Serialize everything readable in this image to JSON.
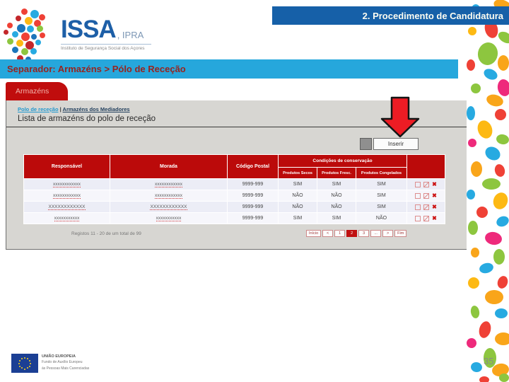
{
  "banner": {
    "title": "2. Procedimento de Candidatura"
  },
  "logo": {
    "name": "ISSA",
    "suffix": ", IPRA",
    "subtitle": "Instituto de Segurança Social dos Açores"
  },
  "separator": {
    "label": "Separador: Armazéns > Pólo de Receção"
  },
  "tab": {
    "label": "Armazéns"
  },
  "app": {
    "breadcrumb": {
      "link_polo": "Polo de receção",
      "divider": "|",
      "link_armazens": "Armazéns dos Mediadores"
    },
    "title": "Lista de armazéns do polo de receção",
    "insert_button": "Inserir",
    "table": {
      "col_responsavel": "Responsável",
      "col_morada": "Morada",
      "col_codigo_postal": "Código Postal",
      "col_condicoes": "Condições de conservação",
      "sub_secos": "Produtos Secos",
      "sub_frescos": "Produtos Fresc.",
      "sub_congelados": "Produtos Congelados",
      "rows": [
        {
          "responsavel": "xxxxxxxxxxxx",
          "morada": "xxxxxxxxxxxx",
          "codigo_postal": "9999-999",
          "secos": "SIM",
          "frescos": "SIM",
          "congelados": "SIM"
        },
        {
          "responsavel": "xxxxxxxxxxxx",
          "morada": "xxxxxxxxxxxx",
          "codigo_postal": "9999-999",
          "secos": "NÃO",
          "frescos": "NÃO",
          "congelados": "SIM"
        },
        {
          "responsavel": "XXXXXXXXXXXX",
          "morada": "XXXXXXXXXXXX",
          "codigo_postal": "9999-999",
          "secos": "NÃO",
          "frescos": "NÃO",
          "congelados": "SIM"
        },
        {
          "responsavel": "xxxxxxxxxxx",
          "morada": "xxxxxxxxxxx",
          "codigo_postal": "9999-999",
          "secos": "SIM",
          "frescos": "SIM",
          "congelados": "NÃO"
        }
      ]
    },
    "pagination": {
      "summary": "Registos 11 - 20 de um total de 99",
      "buttons": [
        "Início",
        "<",
        "1",
        "2",
        "3",
        "...",
        ">",
        "Fim"
      ],
      "active_page": "2"
    }
  },
  "icons": {
    "delete_glyph": "✖"
  },
  "footer": {
    "eu_title": "UNIÃO EUROPEIA",
    "eu_line2": "Fundo de Auxílio Europeu",
    "eu_line3": "às Pessoas Mais Carenciadas",
    "page_number": "35"
  },
  "colors": {
    "banner_blue": "#1660a8",
    "separator_cyan": "#26a7dc",
    "brand_red": "#c00d0d",
    "table_header_red": "#bb0a0a",
    "arrow_red": "#ed1c24"
  }
}
